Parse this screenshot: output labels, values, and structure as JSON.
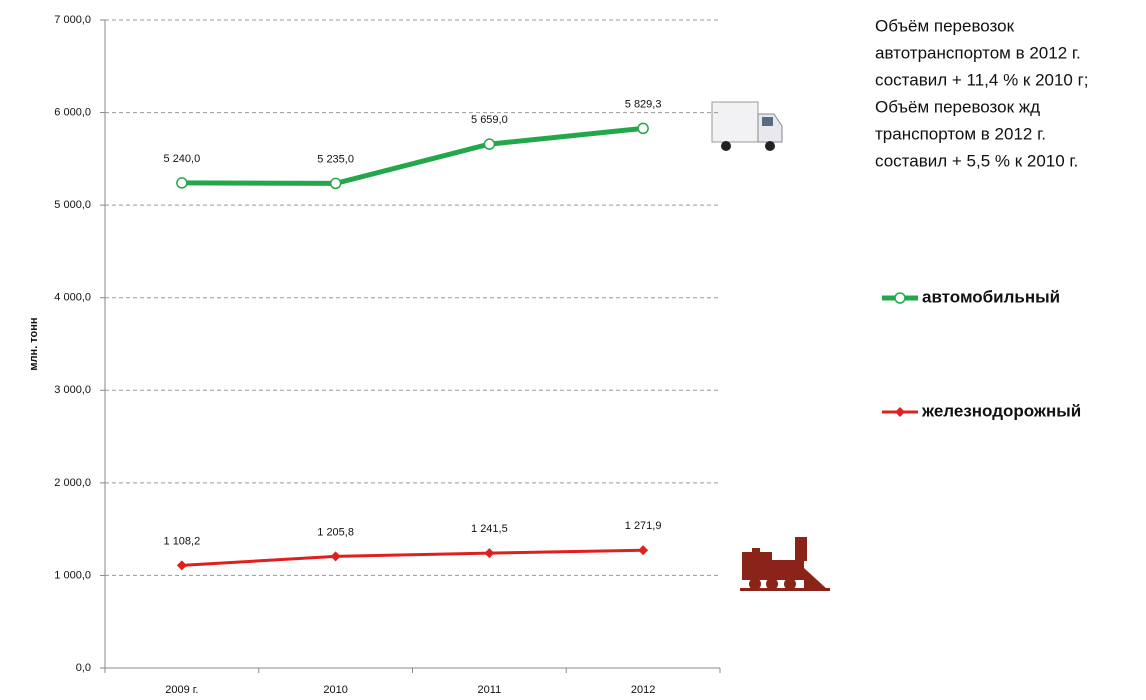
{
  "chart_data": {
    "type": "line",
    "ylabel": "млн. тонн",
    "categories": [
      "2009 г.",
      "2010",
      "2011",
      "2012"
    ],
    "series": [
      {
        "name": "автомобильный",
        "color": "#22a84a",
        "marker": "circle",
        "values": [
          5240.0,
          5235.0,
          5659.0,
          5829.3
        ],
        "value_labels": [
          "5 240,0",
          "5 235,0",
          "5 659,0",
          "5 829,3"
        ]
      },
      {
        "name": "железнодорожный",
        "color": "#e0201e",
        "marker": "diamond",
        "values": [
          1108.2,
          1205.8,
          1241.5,
          1271.9
        ],
        "value_labels": [
          "1 108,2",
          "1 205,8",
          "1 241,5",
          "1 271,9"
        ]
      }
    ],
    "ylim": [
      0,
      7000
    ],
    "yticks": [
      {
        "value": 0,
        "label": "0,0"
      },
      {
        "value": 1000,
        "label": "1 000,0"
      },
      {
        "value": 2000,
        "label": "2 000,0"
      },
      {
        "value": 3000,
        "label": "3 000,0"
      },
      {
        "value": 4000,
        "label": "4 000,0"
      },
      {
        "value": 5000,
        "label": "5 000,0"
      },
      {
        "value": 6000,
        "label": "6 000,0"
      },
      {
        "value": 7000,
        "label": "7 000,0"
      }
    ],
    "grid": true,
    "annotation": [
      "Объём перевозок",
      "автотранспортом в 2012 г.",
      "составил + 11,4 % к 2010 г;",
      "Объём перевозок жд",
      "транспортом в 2012 г.",
      "составил + 5,5 % к 2010 г."
    ]
  }
}
